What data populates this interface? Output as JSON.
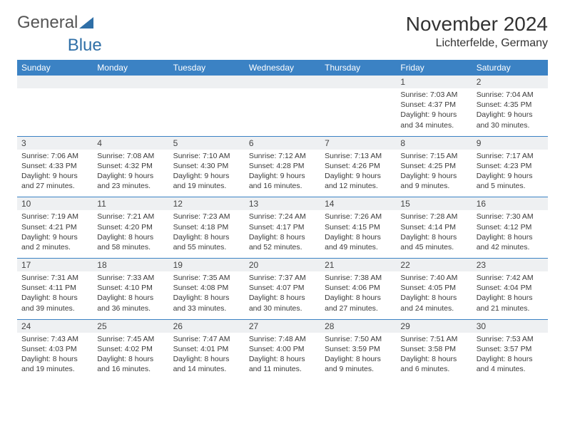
{
  "brand": {
    "part1": "General",
    "part2": "Blue"
  },
  "title": "November 2024",
  "location": "Lichterfelde, Germany",
  "colors": {
    "header_bg": "#3b82c4",
    "header_text": "#ffffff",
    "daynum_bg": "#eef0f2",
    "row_divider": "#3b82c4",
    "body_text": "#3a3a3a",
    "logo_blue": "#2f6fa7"
  },
  "fonts": {
    "title_size": 28,
    "location_size": 16,
    "header_size": 12,
    "daynum_size": 12,
    "cell_size": 10.5
  },
  "day_headers": [
    "Sunday",
    "Monday",
    "Tuesday",
    "Wednesday",
    "Thursday",
    "Friday",
    "Saturday"
  ],
  "weeks": [
    [
      null,
      null,
      null,
      null,
      null,
      {
        "n": "1",
        "sunrise": "Sunrise: 7:03 AM",
        "sunset": "Sunset: 4:37 PM",
        "day1": "Daylight: 9 hours",
        "day2": "and 34 minutes."
      },
      {
        "n": "2",
        "sunrise": "Sunrise: 7:04 AM",
        "sunset": "Sunset: 4:35 PM",
        "day1": "Daylight: 9 hours",
        "day2": "and 30 minutes."
      }
    ],
    [
      {
        "n": "3",
        "sunrise": "Sunrise: 7:06 AM",
        "sunset": "Sunset: 4:33 PM",
        "day1": "Daylight: 9 hours",
        "day2": "and 27 minutes."
      },
      {
        "n": "4",
        "sunrise": "Sunrise: 7:08 AM",
        "sunset": "Sunset: 4:32 PM",
        "day1": "Daylight: 9 hours",
        "day2": "and 23 minutes."
      },
      {
        "n": "5",
        "sunrise": "Sunrise: 7:10 AM",
        "sunset": "Sunset: 4:30 PM",
        "day1": "Daylight: 9 hours",
        "day2": "and 19 minutes."
      },
      {
        "n": "6",
        "sunrise": "Sunrise: 7:12 AM",
        "sunset": "Sunset: 4:28 PM",
        "day1": "Daylight: 9 hours",
        "day2": "and 16 minutes."
      },
      {
        "n": "7",
        "sunrise": "Sunrise: 7:13 AM",
        "sunset": "Sunset: 4:26 PM",
        "day1": "Daylight: 9 hours",
        "day2": "and 12 minutes."
      },
      {
        "n": "8",
        "sunrise": "Sunrise: 7:15 AM",
        "sunset": "Sunset: 4:25 PM",
        "day1": "Daylight: 9 hours",
        "day2": "and 9 minutes."
      },
      {
        "n": "9",
        "sunrise": "Sunrise: 7:17 AM",
        "sunset": "Sunset: 4:23 PM",
        "day1": "Daylight: 9 hours",
        "day2": "and 5 minutes."
      }
    ],
    [
      {
        "n": "10",
        "sunrise": "Sunrise: 7:19 AM",
        "sunset": "Sunset: 4:21 PM",
        "day1": "Daylight: 9 hours",
        "day2": "and 2 minutes."
      },
      {
        "n": "11",
        "sunrise": "Sunrise: 7:21 AM",
        "sunset": "Sunset: 4:20 PM",
        "day1": "Daylight: 8 hours",
        "day2": "and 58 minutes."
      },
      {
        "n": "12",
        "sunrise": "Sunrise: 7:23 AM",
        "sunset": "Sunset: 4:18 PM",
        "day1": "Daylight: 8 hours",
        "day2": "and 55 minutes."
      },
      {
        "n": "13",
        "sunrise": "Sunrise: 7:24 AM",
        "sunset": "Sunset: 4:17 PM",
        "day1": "Daylight: 8 hours",
        "day2": "and 52 minutes."
      },
      {
        "n": "14",
        "sunrise": "Sunrise: 7:26 AM",
        "sunset": "Sunset: 4:15 PM",
        "day1": "Daylight: 8 hours",
        "day2": "and 49 minutes."
      },
      {
        "n": "15",
        "sunrise": "Sunrise: 7:28 AM",
        "sunset": "Sunset: 4:14 PM",
        "day1": "Daylight: 8 hours",
        "day2": "and 45 minutes."
      },
      {
        "n": "16",
        "sunrise": "Sunrise: 7:30 AM",
        "sunset": "Sunset: 4:12 PM",
        "day1": "Daylight: 8 hours",
        "day2": "and 42 minutes."
      }
    ],
    [
      {
        "n": "17",
        "sunrise": "Sunrise: 7:31 AM",
        "sunset": "Sunset: 4:11 PM",
        "day1": "Daylight: 8 hours",
        "day2": "and 39 minutes."
      },
      {
        "n": "18",
        "sunrise": "Sunrise: 7:33 AM",
        "sunset": "Sunset: 4:10 PM",
        "day1": "Daylight: 8 hours",
        "day2": "and 36 minutes."
      },
      {
        "n": "19",
        "sunrise": "Sunrise: 7:35 AM",
        "sunset": "Sunset: 4:08 PM",
        "day1": "Daylight: 8 hours",
        "day2": "and 33 minutes."
      },
      {
        "n": "20",
        "sunrise": "Sunrise: 7:37 AM",
        "sunset": "Sunset: 4:07 PM",
        "day1": "Daylight: 8 hours",
        "day2": "and 30 minutes."
      },
      {
        "n": "21",
        "sunrise": "Sunrise: 7:38 AM",
        "sunset": "Sunset: 4:06 PM",
        "day1": "Daylight: 8 hours",
        "day2": "and 27 minutes."
      },
      {
        "n": "22",
        "sunrise": "Sunrise: 7:40 AM",
        "sunset": "Sunset: 4:05 PM",
        "day1": "Daylight: 8 hours",
        "day2": "and 24 minutes."
      },
      {
        "n": "23",
        "sunrise": "Sunrise: 7:42 AM",
        "sunset": "Sunset: 4:04 PM",
        "day1": "Daylight: 8 hours",
        "day2": "and 21 minutes."
      }
    ],
    [
      {
        "n": "24",
        "sunrise": "Sunrise: 7:43 AM",
        "sunset": "Sunset: 4:03 PM",
        "day1": "Daylight: 8 hours",
        "day2": "and 19 minutes."
      },
      {
        "n": "25",
        "sunrise": "Sunrise: 7:45 AM",
        "sunset": "Sunset: 4:02 PM",
        "day1": "Daylight: 8 hours",
        "day2": "and 16 minutes."
      },
      {
        "n": "26",
        "sunrise": "Sunrise: 7:47 AM",
        "sunset": "Sunset: 4:01 PM",
        "day1": "Daylight: 8 hours",
        "day2": "and 14 minutes."
      },
      {
        "n": "27",
        "sunrise": "Sunrise: 7:48 AM",
        "sunset": "Sunset: 4:00 PM",
        "day1": "Daylight: 8 hours",
        "day2": "and 11 minutes."
      },
      {
        "n": "28",
        "sunrise": "Sunrise: 7:50 AM",
        "sunset": "Sunset: 3:59 PM",
        "day1": "Daylight: 8 hours",
        "day2": "and 9 minutes."
      },
      {
        "n": "29",
        "sunrise": "Sunrise: 7:51 AM",
        "sunset": "Sunset: 3:58 PM",
        "day1": "Daylight: 8 hours",
        "day2": "and 6 minutes."
      },
      {
        "n": "30",
        "sunrise": "Sunrise: 7:53 AM",
        "sunset": "Sunset: 3:57 PM",
        "day1": "Daylight: 8 hours",
        "day2": "and 4 minutes."
      }
    ]
  ]
}
